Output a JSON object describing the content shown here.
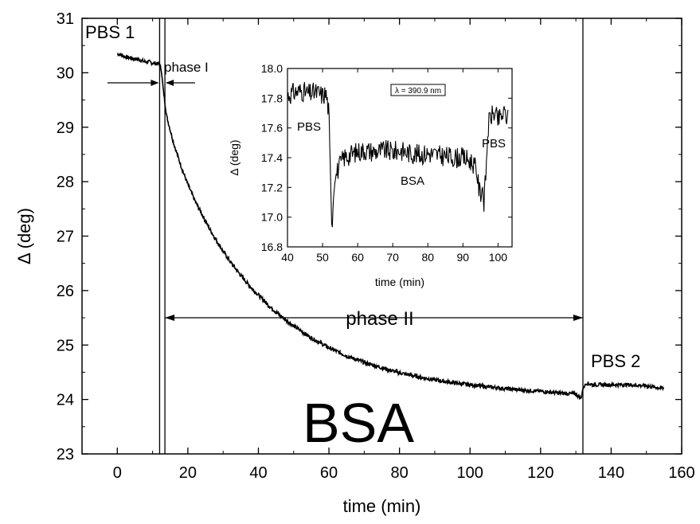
{
  "chart_data": [
    {
      "type": "line",
      "xlabel": "time (min)",
      "ylabel": "Δ (deg)",
      "xlim": [
        -10,
        160
      ],
      "ylim": [
        23,
        31
      ],
      "x_ticks": [
        0,
        20,
        40,
        60,
        80,
        100,
        120,
        140,
        160
      ],
      "y_ticks": [
        23,
        24,
        25,
        26,
        27,
        28,
        29,
        30,
        31
      ],
      "grid": false,
      "series": [
        {
          "x": [
            0,
            1,
            2,
            3,
            4,
            5,
            6,
            7,
            8,
            9,
            10,
            11,
            12,
            12.5,
            13,
            13.5,
            14,
            15,
            16,
            17,
            18,
            19,
            20,
            22,
            24,
            26,
            28,
            30,
            32,
            35,
            38,
            40,
            43,
            46,
            50,
            55,
            60,
            65,
            70,
            75,
            80,
            85,
            90,
            95,
            100,
            105,
            110,
            115,
            120,
            125,
            130,
            131.5,
            132,
            133,
            135,
            140,
            145,
            150,
            155
          ],
          "y": [
            30.35,
            30.33,
            30.3,
            30.28,
            30.27,
            30.25,
            30.25,
            30.22,
            30.2,
            30.2,
            30.18,
            30.17,
            30.15,
            30.05,
            29.7,
            29.45,
            29.2,
            28.95,
            28.7,
            28.5,
            28.3,
            28.12,
            27.95,
            27.65,
            27.4,
            27.15,
            26.93,
            26.72,
            26.53,
            26.28,
            26.05,
            25.92,
            25.72,
            25.55,
            25.35,
            25.13,
            24.95,
            24.8,
            24.68,
            24.58,
            24.49,
            24.42,
            24.36,
            24.31,
            24.27,
            24.23,
            24.2,
            24.17,
            24.15,
            24.12,
            24.1,
            24.02,
            24.2,
            24.3,
            24.27,
            24.27,
            24.27,
            24.25,
            24.2
          ]
        }
      ],
      "vlines": [
        12,
        13.5,
        132
      ],
      "annotations": {
        "pbs1": "PBS 1",
        "phase1": "phase I",
        "phase2": "phase II",
        "pbs2": "PBS 2",
        "bsa": "BSA"
      },
      "phase2_range": [
        13.5,
        132
      ],
      "phase1_range": [
        12,
        13.5
      ]
    },
    {
      "type": "line",
      "xlabel": "time (min)",
      "ylabel": "Δ (deg)",
      "xlim": [
        40,
        104
      ],
      "ylim": [
        16.8,
        18.0
      ],
      "x_ticks": [
        40,
        50,
        60,
        70,
        80,
        90,
        100
      ],
      "y_ticks": [
        16.8,
        17.0,
        17.2,
        17.4,
        17.6,
        17.8,
        18.0
      ],
      "grid": false,
      "series": [
        {
          "x": [
            40,
            42,
            44,
            46,
            48,
            50,
            51,
            51.8,
            52.3,
            52.7,
            53,
            53.5,
            54,
            55,
            56,
            58,
            60,
            62,
            65,
            68,
            70,
            72,
            75,
            78,
            80,
            82,
            85,
            88,
            90,
            92,
            93,
            94,
            94.5,
            95,
            95.5,
            96,
            96.3,
            96.8,
            97,
            97.5,
            98,
            99,
            100,
            101,
            102,
            103
          ],
          "y": [
            17.82,
            17.84,
            17.85,
            17.83,
            17.84,
            17.82,
            17.83,
            17.7,
            17.25,
            16.88,
            17.1,
            17.25,
            17.3,
            17.35,
            17.4,
            17.42,
            17.44,
            17.45,
            17.44,
            17.45,
            17.44,
            17.45,
            17.43,
            17.42,
            17.43,
            17.42,
            17.41,
            17.4,
            17.4,
            17.38,
            17.36,
            17.3,
            17.2,
            17.15,
            17.22,
            17.1,
            17.2,
            17.4,
            17.55,
            17.65,
            17.68,
            17.7,
            17.65,
            17.68,
            17.7,
            17.65
          ]
        }
      ],
      "legend_box": "λ = 390.9 nm",
      "annotations": {
        "pbs_left": "PBS",
        "pbs_right": "PBS",
        "bsa": "BSA"
      }
    }
  ]
}
